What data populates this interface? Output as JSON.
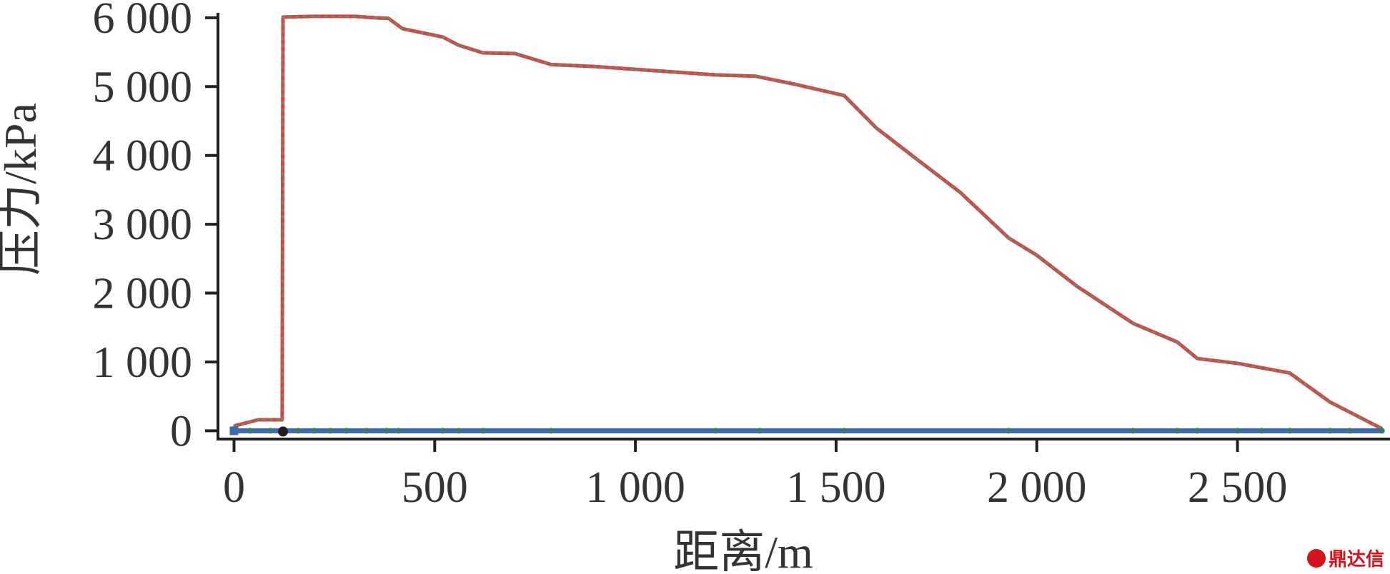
{
  "chart_data": {
    "type": "line",
    "title": "",
    "xlabel": "距离/m",
    "ylabel": "压力/kPa",
    "xlim": [
      -40,
      2880
    ],
    "ylim": [
      -120,
      6050
    ],
    "x_ticks": [
      0,
      500,
      1000,
      1500,
      2000,
      2500
    ],
    "x_tick_labels": [
      "0",
      "500",
      "1 000",
      "1 500",
      "2 000",
      "2 500"
    ],
    "y_ticks": [
      0,
      1000,
      2000,
      3000,
      4000,
      5000,
      6000
    ],
    "y_tick_labels": [
      "0",
      "1 000",
      "2 000",
      "3 000",
      "4 000",
      "5 000",
      "6 000"
    ],
    "grid": false,
    "series": [
      {
        "color": "#d64545",
        "dash_color": "#4f9a7a",
        "x": [
          0,
          60,
          120,
          122,
          200,
          300,
          350,
          385,
          420,
          520,
          560,
          620,
          700,
          790,
          900,
          1000,
          1100,
          1200,
          1300,
          1400,
          1520,
          1600,
          1700,
          1810,
          1930,
          2000,
          2100,
          2240,
          2350,
          2400,
          2500,
          2630,
          2730,
          2860
        ],
        "y": [
          70,
          160,
          160,
          6010,
          6020,
          6020,
          6000,
          5990,
          5840,
          5720,
          5600,
          5490,
          5480,
          5320,
          5290,
          5250,
          5210,
          5170,
          5150,
          5030,
          4870,
          4400,
          3950,
          3460,
          2800,
          2550,
          2100,
          1560,
          1290,
          1050,
          980,
          840,
          420,
          30
        ]
      },
      {
        "color": "#3d6aad",
        "x": [
          0,
          60,
          120,
          200,
          400,
          600,
          800,
          1000,
          1200,
          1500,
          2000,
          2500,
          2860
        ],
        "y": [
          0,
          0,
          0,
          0,
          0,
          0,
          0,
          0,
          0,
          0,
          0,
          0,
          0
        ],
        "markers": [
          0,
          40,
          90,
          120,
          160,
          200,
          240,
          280,
          330,
          380,
          410,
          520,
          560,
          620,
          790,
          1200,
          1310,
          1520,
          1930,
          2240,
          2350,
          2400,
          2500,
          2560,
          2630,
          2730,
          2780,
          2860
        ]
      }
    ]
  },
  "watermark": {
    "text": "鼎达信"
  }
}
